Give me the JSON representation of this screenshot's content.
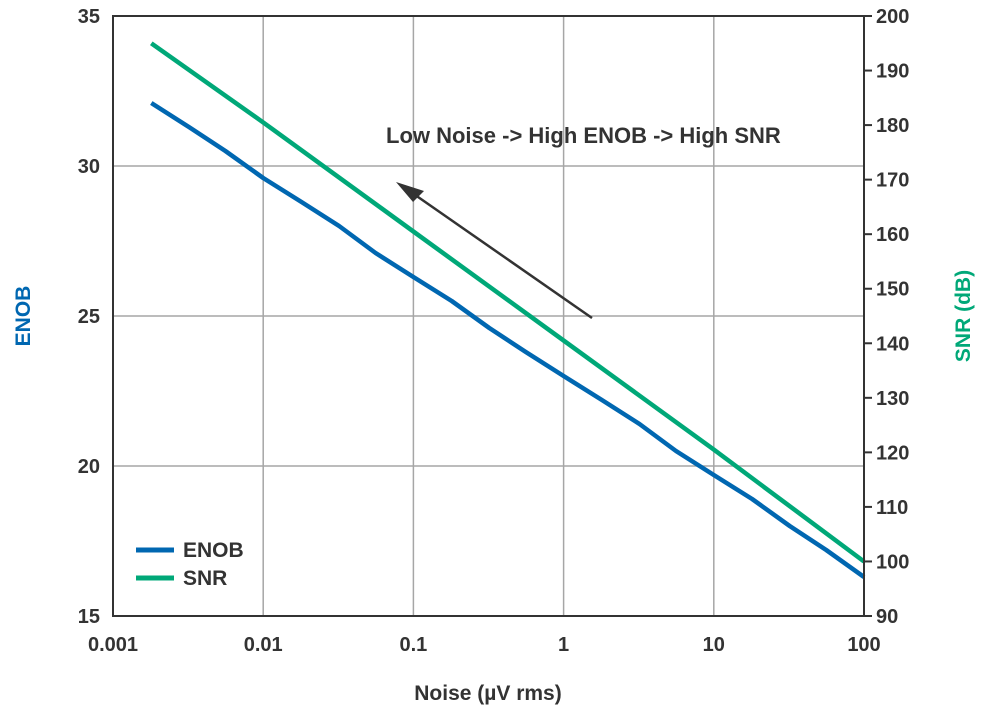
{
  "chart_data": {
    "type": "line",
    "title": "",
    "xlabel": "Noise (µV rms)",
    "ylabel_left": "ENOB",
    "ylabel_right": "SNR (dB)",
    "x_scale": "log",
    "xlim": [
      0.001,
      100
    ],
    "ylim_left": [
      15,
      35
    ],
    "ylim_right": [
      90,
      200
    ],
    "x_ticks": [
      "0.001",
      "0.01",
      "0.1",
      "1",
      "10",
      "100"
    ],
    "y_left_ticks": [
      "15",
      "20",
      "25",
      "30",
      "35"
    ],
    "y_right_ticks": [
      "90",
      "100",
      "110",
      "120",
      "130",
      "140",
      "150",
      "160",
      "170",
      "180",
      "190",
      "200"
    ],
    "grid": true,
    "legend_position": "bottom-left",
    "annotation": "Low Noise -> High ENOB -> High SNR",
    "series": [
      {
        "name": "ENOB",
        "axis": "left",
        "color": "#0067b1",
        "points": [
          [
            0.0018,
            32.1
          ],
          [
            0.0032,
            31.3
          ],
          [
            0.0056,
            30.5
          ],
          [
            0.01,
            29.6
          ],
          [
            0.018,
            28.8
          ],
          [
            0.032,
            28.0
          ],
          [
            0.056,
            27.1
          ],
          [
            0.1,
            26.3
          ],
          [
            0.18,
            25.5
          ],
          [
            0.32,
            24.6
          ],
          [
            0.56,
            23.8
          ],
          [
            1.0,
            23.0
          ],
          [
            1.8,
            22.2
          ],
          [
            3.2,
            21.4
          ],
          [
            5.6,
            20.5
          ],
          [
            10.0,
            19.7
          ],
          [
            18.0,
            18.9
          ],
          [
            32.0,
            18.0
          ],
          [
            56.0,
            17.2
          ],
          [
            100.0,
            16.3
          ]
        ]
      },
      {
        "name": "SNR",
        "axis": "right",
        "color": "#00a878",
        "points": [
          [
            0.0018,
            195.0
          ],
          [
            0.01,
            180.5
          ],
          [
            0.1,
            160.5
          ],
          [
            1.0,
            140.5
          ],
          [
            10.0,
            120.5
          ],
          [
            100.0,
            100.0
          ]
        ]
      }
    ]
  }
}
